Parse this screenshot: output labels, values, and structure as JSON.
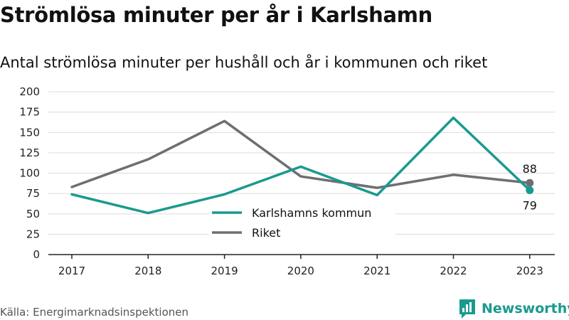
{
  "header": {
    "title": "Strömlösa minuter per år i Karlshamn",
    "subtitle": "Antal strömlösa minuter per hushåll och år i kommunen och riket"
  },
  "footer": {
    "source": "Källa: Energimarknadsinspektionen",
    "brand_name": "Newsworthy",
    "brand_icon": "newsworthy-logo-icon"
  },
  "colors": {
    "kommun": "#1a9a8e",
    "riket": "#6e6e73",
    "grid": "#dcdcdc",
    "axis": "#222222"
  },
  "chart_data": {
    "type": "line",
    "title": "Strömlösa minuter per år i Karlshamn",
    "subtitle": "Antal strömlösa minuter per hushåll och år i kommunen och riket",
    "xlabel": "",
    "ylabel": "",
    "categories": [
      "2017",
      "2018",
      "2019",
      "2020",
      "2021",
      "2022",
      "2023"
    ],
    "ylim": [
      0,
      200
    ],
    "yticks": [
      0,
      25,
      50,
      75,
      100,
      125,
      150,
      175,
      200
    ],
    "grid": true,
    "legend_position": "bottom-center",
    "series": [
      {
        "name": "Karlshamns kommun",
        "color_key": "kommun",
        "values": [
          74,
          51,
          74,
          108,
          73,
          168,
          79
        ],
        "end_label": "79"
      },
      {
        "name": "Riket",
        "color_key": "riket",
        "values": [
          83,
          117,
          164,
          96,
          82,
          98,
          88
        ],
        "end_label": "88"
      }
    ]
  }
}
